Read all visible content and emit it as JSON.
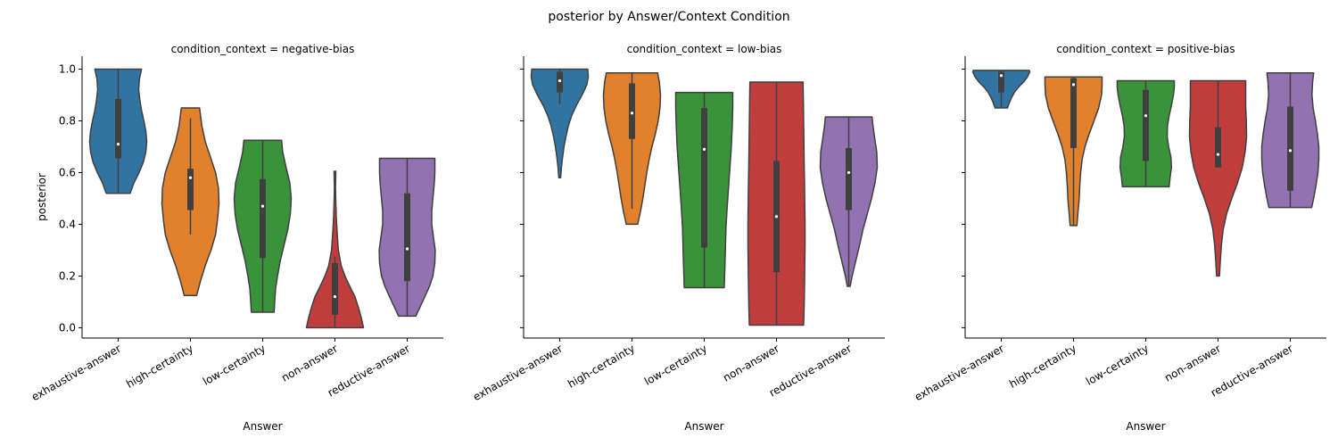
{
  "figure": {
    "suptitle": "posterior by Answer/Context Condition"
  },
  "chart_data": [
    {
      "type": "violin",
      "title": "condition_context = negative-bias",
      "xlabel": "Answer",
      "ylabel": "posterior",
      "ylim": [
        -0.04,
        1.05
      ],
      "yticks": [
        "0.0",
        "0.2",
        "0.4",
        "0.6",
        "0.8",
        "1.0"
      ],
      "categories": [
        "exhaustive-answer",
        "high-certainty",
        "low-certainty",
        "non-answer",
        "reductive-answer"
      ],
      "colors": [
        "#3274a1",
        "#e1812c",
        "#3a923a",
        "#c03d3e",
        "#9372b2"
      ],
      "series": [
        {
          "min": 0.52,
          "max": 1.0,
          "q1": 0.655,
          "median": 0.71,
          "q3": 0.885,
          "whisker_low": 0.52,
          "whisker_high": 1.0,
          "profile": [
            [
              0.52,
              0.42
            ],
            [
              0.56,
              0.55
            ],
            [
              0.6,
              0.73
            ],
            [
              0.64,
              0.88
            ],
            [
              0.68,
              0.97
            ],
            [
              0.72,
              1.0
            ],
            [
              0.76,
              0.97
            ],
            [
              0.8,
              0.9
            ],
            [
              0.84,
              0.82
            ],
            [
              0.88,
              0.76
            ],
            [
              0.92,
              0.72
            ],
            [
              0.96,
              0.74
            ],
            [
              1.0,
              0.82
            ]
          ]
        },
        {
          "min": 0.125,
          "max": 0.85,
          "q1": 0.455,
          "median": 0.58,
          "q3": 0.615,
          "whisker_low": 0.36,
          "whisker_high": 0.81,
          "profile": [
            [
              0.125,
              0.22
            ],
            [
              0.18,
              0.35
            ],
            [
              0.24,
              0.52
            ],
            [
              0.3,
              0.72
            ],
            [
              0.36,
              0.88
            ],
            [
              0.42,
              0.95
            ],
            [
              0.48,
              1.0
            ],
            [
              0.54,
              0.98
            ],
            [
              0.6,
              0.88
            ],
            [
              0.66,
              0.7
            ],
            [
              0.72,
              0.52
            ],
            [
              0.78,
              0.4
            ],
            [
              0.85,
              0.32
            ]
          ]
        },
        {
          "min": 0.06,
          "max": 0.725,
          "q1": 0.27,
          "median": 0.47,
          "q3": 0.575,
          "whisker_low": 0.06,
          "whisker_high": 0.725,
          "profile": [
            [
              0.06,
              0.4
            ],
            [
              0.1,
              0.42
            ],
            [
              0.15,
              0.45
            ],
            [
              0.2,
              0.52
            ],
            [
              0.26,
              0.62
            ],
            [
              0.32,
              0.75
            ],
            [
              0.38,
              0.88
            ],
            [
              0.44,
              0.97
            ],
            [
              0.5,
              1.0
            ],
            [
              0.56,
              0.95
            ],
            [
              0.62,
              0.82
            ],
            [
              0.68,
              0.7
            ],
            [
              0.725,
              0.66
            ]
          ]
        },
        {
          "min": 0.0,
          "max": 0.605,
          "q1": 0.05,
          "median": 0.12,
          "q3": 0.25,
          "whisker_low": 0.0,
          "whisker_high": 0.275,
          "profile": [
            [
              0.0,
              1.0
            ],
            [
              0.04,
              0.92
            ],
            [
              0.08,
              0.82
            ],
            [
              0.12,
              0.7
            ],
            [
              0.16,
              0.52
            ],
            [
              0.2,
              0.35
            ],
            [
              0.24,
              0.22
            ],
            [
              0.3,
              0.12
            ],
            [
              0.36,
              0.08
            ],
            [
              0.42,
              0.05
            ],
            [
              0.48,
              0.03
            ],
            [
              0.54,
              0.02
            ],
            [
              0.605,
              0.03
            ]
          ]
        },
        {
          "min": 0.045,
          "max": 0.655,
          "q1": 0.18,
          "median": 0.305,
          "q3": 0.52,
          "whisker_low": 0.045,
          "whisker_high": 0.655,
          "profile": [
            [
              0.045,
              0.3
            ],
            [
              0.08,
              0.45
            ],
            [
              0.12,
              0.62
            ],
            [
              0.16,
              0.78
            ],
            [
              0.2,
              0.9
            ],
            [
              0.25,
              0.97
            ],
            [
              0.3,
              0.98
            ],
            [
              0.35,
              0.92
            ],
            [
              0.4,
              0.86
            ],
            [
              0.45,
              0.86
            ],
            [
              0.5,
              0.9
            ],
            [
              0.56,
              0.95
            ],
            [
              0.6,
              0.97
            ],
            [
              0.655,
              0.97
            ]
          ]
        }
      ]
    },
    {
      "type": "violin",
      "title": "condition_context = low-bias",
      "xlabel": "Answer",
      "ylabel": "",
      "ylim": [
        -0.04,
        1.05
      ],
      "yticks": [
        "0.0",
        "0.2",
        "0.4",
        "0.6",
        "0.8",
        "1.0"
      ],
      "categories": [
        "exhaustive-answer",
        "high-certainty",
        "low-certainty",
        "non-answer",
        "reductive-answer"
      ],
      "colors": [
        "#3274a1",
        "#e1812c",
        "#3a923a",
        "#c03d3e",
        "#9372b2"
      ],
      "series": [
        {
          "min": 0.58,
          "max": 1.0,
          "q1": 0.91,
          "median": 0.955,
          "q3": 0.99,
          "whisker_low": 0.865,
          "whisker_high": 1.0,
          "profile": [
            [
              0.58,
              0.03
            ],
            [
              0.62,
              0.06
            ],
            [
              0.66,
              0.1
            ],
            [
              0.7,
              0.15
            ],
            [
              0.74,
              0.22
            ],
            [
              0.78,
              0.3
            ],
            [
              0.82,
              0.42
            ],
            [
              0.86,
              0.58
            ],
            [
              0.9,
              0.78
            ],
            [
              0.94,
              0.95
            ],
            [
              0.97,
              1.0
            ],
            [
              1.0,
              0.98
            ]
          ]
        },
        {
          "min": 0.4,
          "max": 0.985,
          "q1": 0.73,
          "median": 0.83,
          "q3": 0.945,
          "whisker_low": 0.46,
          "whisker_high": 0.985,
          "profile": [
            [
              0.4,
              0.2
            ],
            [
              0.45,
              0.3
            ],
            [
              0.5,
              0.38
            ],
            [
              0.55,
              0.45
            ],
            [
              0.6,
              0.52
            ],
            [
              0.65,
              0.6
            ],
            [
              0.7,
              0.7
            ],
            [
              0.75,
              0.82
            ],
            [
              0.8,
              0.92
            ],
            [
              0.85,
              0.98
            ],
            [
              0.9,
              1.0
            ],
            [
              0.95,
              0.96
            ],
            [
              0.985,
              0.9
            ]
          ]
        },
        {
          "min": 0.155,
          "max": 0.91,
          "q1": 0.31,
          "median": 0.69,
          "q3": 0.85,
          "whisker_low": 0.155,
          "whisker_high": 0.91,
          "profile": [
            [
              0.155,
              0.7
            ],
            [
              0.22,
              0.72
            ],
            [
              0.3,
              0.74
            ],
            [
              0.38,
              0.76
            ],
            [
              0.46,
              0.8
            ],
            [
              0.54,
              0.85
            ],
            [
              0.62,
              0.9
            ],
            [
              0.7,
              0.95
            ],
            [
              0.78,
              0.98
            ],
            [
              0.85,
              1.0
            ],
            [
              0.91,
              1.0
            ]
          ]
        },
        {
          "min": 0.01,
          "max": 0.95,
          "q1": 0.215,
          "median": 0.43,
          "q3": 0.645,
          "whisker_low": 0.01,
          "whisker_high": 0.95,
          "profile": [
            [
              0.01,
              0.95
            ],
            [
              0.08,
              0.97
            ],
            [
              0.16,
              0.98
            ],
            [
              0.24,
              0.99
            ],
            [
              0.32,
              1.0
            ],
            [
              0.4,
              1.0
            ],
            [
              0.48,
              0.99
            ],
            [
              0.56,
              0.98
            ],
            [
              0.64,
              0.97
            ],
            [
              0.72,
              0.96
            ],
            [
              0.8,
              0.95
            ],
            [
              0.88,
              0.94
            ],
            [
              0.95,
              0.93
            ]
          ]
        },
        {
          "min": 0.16,
          "max": 0.815,
          "q1": 0.455,
          "median": 0.6,
          "q3": 0.695,
          "whisker_low": 0.16,
          "whisker_high": 0.815,
          "profile": [
            [
              0.16,
              0.05
            ],
            [
              0.2,
              0.12
            ],
            [
              0.26,
              0.25
            ],
            [
              0.32,
              0.38
            ],
            [
              0.38,
              0.5
            ],
            [
              0.44,
              0.65
            ],
            [
              0.5,
              0.8
            ],
            [
              0.56,
              0.92
            ],
            [
              0.62,
              1.0
            ],
            [
              0.68,
              0.98
            ],
            [
              0.74,
              0.9
            ],
            [
              0.78,
              0.85
            ],
            [
              0.815,
              0.82
            ]
          ]
        }
      ]
    },
    {
      "type": "violin",
      "title": "condition_context = positive-bias",
      "xlabel": "Answer",
      "ylabel": "",
      "ylim": [
        -0.04,
        1.05
      ],
      "yticks": [
        "0.0",
        "0.2",
        "0.4",
        "0.6",
        "0.8",
        "1.0"
      ],
      "categories": [
        "exhaustive-answer",
        "high-certainty",
        "low-certainty",
        "non-answer",
        "reductive-answer"
      ],
      "colors": [
        "#3274a1",
        "#e1812c",
        "#3a923a",
        "#c03d3e",
        "#9372b2"
      ],
      "series": [
        {
          "min": 0.85,
          "max": 0.995,
          "q1": 0.91,
          "median": 0.975,
          "q3": 0.99,
          "whisker_low": 0.85,
          "whisker_high": 0.995,
          "profile": [
            [
              0.85,
              0.22
            ],
            [
              0.87,
              0.28
            ],
            [
              0.89,
              0.36
            ],
            [
              0.91,
              0.46
            ],
            [
              0.93,
              0.6
            ],
            [
              0.95,
              0.78
            ],
            [
              0.97,
              0.92
            ],
            [
              0.99,
              1.0
            ],
            [
              0.995,
              0.98
            ]
          ]
        },
        {
          "min": 0.395,
          "max": 0.97,
          "q1": 0.695,
          "median": 0.94,
          "q3": 0.965,
          "whisker_low": 0.395,
          "whisker_high": 0.97,
          "profile": [
            [
              0.395,
              0.12
            ],
            [
              0.45,
              0.16
            ],
            [
              0.5,
              0.2
            ],
            [
              0.55,
              0.22
            ],
            [
              0.6,
              0.25
            ],
            [
              0.65,
              0.3
            ],
            [
              0.7,
              0.4
            ],
            [
              0.75,
              0.55
            ],
            [
              0.8,
              0.72
            ],
            [
              0.85,
              0.88
            ],
            [
              0.9,
              0.98
            ],
            [
              0.94,
              1.0
            ],
            [
              0.97,
              1.0
            ]
          ]
        },
        {
          "min": 0.545,
          "max": 0.955,
          "q1": 0.645,
          "median": 0.82,
          "q3": 0.92,
          "whisker_low": 0.545,
          "whisker_high": 0.955,
          "profile": [
            [
              0.545,
              0.82
            ],
            [
              0.58,
              0.85
            ],
            [
              0.62,
              0.9
            ],
            [
              0.66,
              0.88
            ],
            [
              0.7,
              0.8
            ],
            [
              0.74,
              0.75
            ],
            [
              0.78,
              0.76
            ],
            [
              0.82,
              0.82
            ],
            [
              0.86,
              0.9
            ],
            [
              0.9,
              0.97
            ],
            [
              0.93,
              1.0
            ],
            [
              0.955,
              1.0
            ]
          ]
        },
        {
          "min": 0.2,
          "max": 0.955,
          "q1": 0.62,
          "median": 0.67,
          "q3": 0.775,
          "whisker_low": 0.62,
          "whisker_high": 0.955,
          "profile": [
            [
              0.2,
              0.05
            ],
            [
              0.26,
              0.08
            ],
            [
              0.32,
              0.12
            ],
            [
              0.38,
              0.18
            ],
            [
              0.44,
              0.3
            ],
            [
              0.5,
              0.48
            ],
            [
              0.56,
              0.68
            ],
            [
              0.62,
              0.85
            ],
            [
              0.68,
              0.95
            ],
            [
              0.74,
              1.0
            ],
            [
              0.8,
              0.99
            ],
            [
              0.86,
              0.97
            ],
            [
              0.92,
              0.97
            ],
            [
              0.955,
              0.97
            ]
          ]
        },
        {
          "min": 0.465,
          "max": 0.985,
          "q1": 0.53,
          "median": 0.685,
          "q3": 0.855,
          "whisker_low": 0.465,
          "whisker_high": 0.985,
          "profile": [
            [
              0.465,
              0.75
            ],
            [
              0.5,
              0.82
            ],
            [
              0.55,
              0.9
            ],
            [
              0.6,
              0.97
            ],
            [
              0.65,
              1.0
            ],
            [
              0.7,
              1.0
            ],
            [
              0.75,
              0.95
            ],
            [
              0.8,
              0.88
            ],
            [
              0.85,
              0.8
            ],
            [
              0.9,
              0.76
            ],
            [
              0.95,
              0.78
            ],
            [
              0.985,
              0.82
            ]
          ]
        }
      ]
    }
  ]
}
